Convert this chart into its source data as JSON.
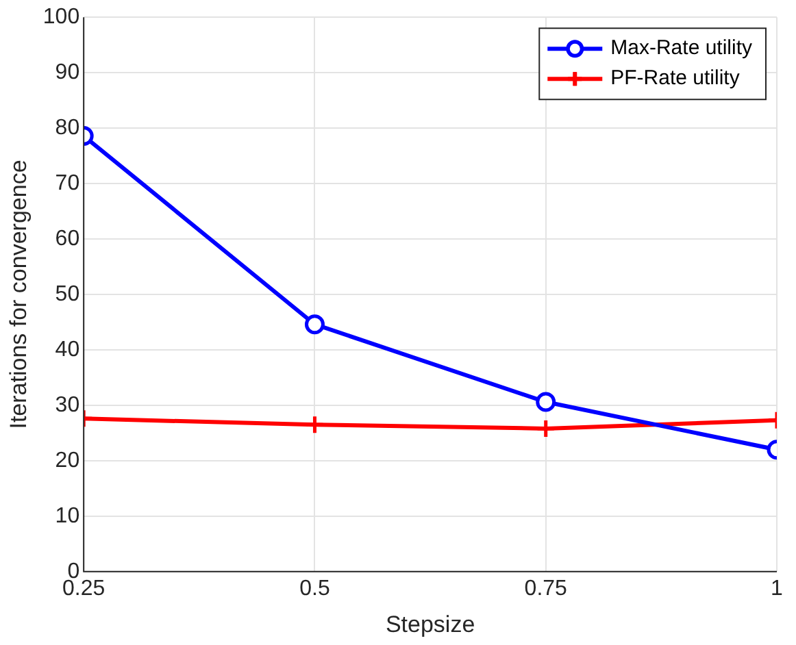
{
  "chart_data": {
    "type": "line",
    "xlabel": "Stepsize",
    "ylabel": "Iterations for convergence",
    "x": [
      0.25,
      0.5,
      0.75,
      1
    ],
    "xlim": [
      0.25,
      1
    ],
    "xticks": [
      0.25,
      0.5,
      0.75,
      1
    ],
    "ylim": [
      0,
      100
    ],
    "yticks": [
      0,
      10,
      20,
      30,
      40,
      50,
      60,
      70,
      80,
      90,
      100
    ],
    "grid": true,
    "legend": "top right",
    "line_style": "solid",
    "series": [
      {
        "name": "Max-Rate utility",
        "color": "#0000ff",
        "marker": "circle",
        "values": [
          78.6,
          44.6,
          30.6,
          22.0
        ]
      },
      {
        "name": "PF-Rate utility",
        "color": "#ff0000",
        "marker": "cross",
        "values": [
          27.6,
          26.5,
          25.8,
          27.3
        ]
      }
    ]
  }
}
